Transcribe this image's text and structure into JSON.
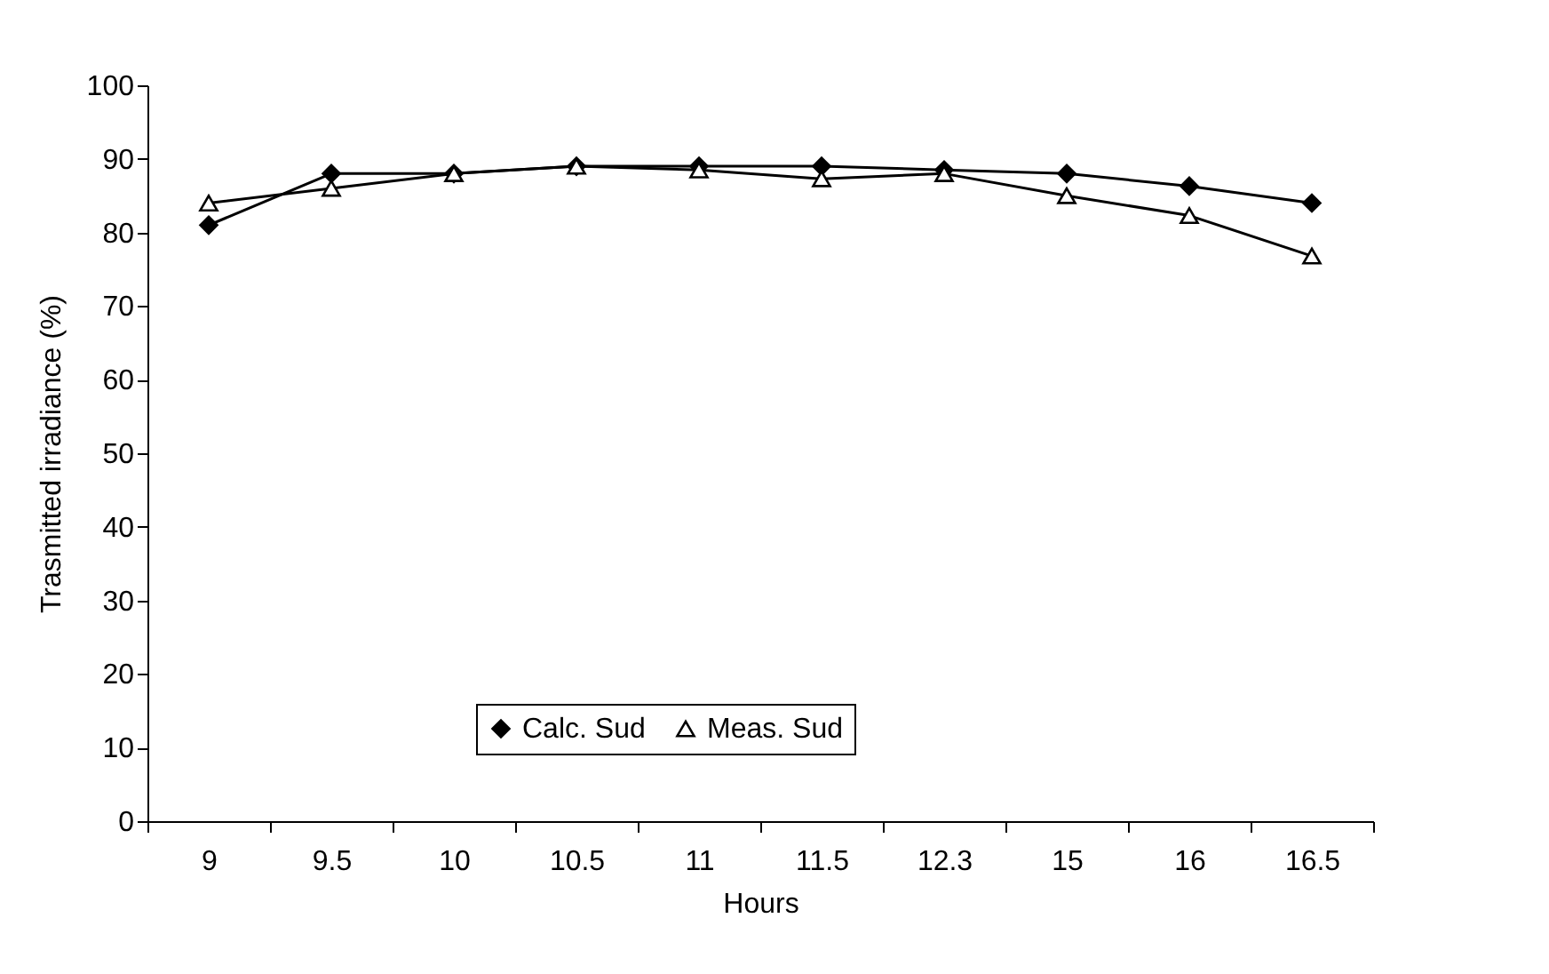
{
  "chart_data": {
    "type": "line",
    "xlabel": "Hours",
    "ylabel": "Trasmitted irradiance (%)",
    "categories": [
      "9",
      "9.5",
      "10",
      "10.5",
      "11",
      "11.5",
      "12.3",
      "15",
      "16",
      "16.5"
    ],
    "series": [
      {
        "name": "Calc. Sud",
        "color": "#000000",
        "marker": "diamond",
        "values": [
          81,
          88,
          88,
          89,
          89,
          89,
          88.5,
          88,
          86.3,
          84
        ]
      },
      {
        "name": "Meas. Sud",
        "color": "#000000",
        "marker": "triangle",
        "values": [
          84,
          86,
          88,
          89,
          88.5,
          87.3,
          88,
          85,
          82.3,
          76.8
        ]
      }
    ],
    "ylim": [
      0,
      100
    ],
    "yticks": [
      0,
      10,
      20,
      30,
      40,
      50,
      60,
      70,
      80,
      90,
      100
    ],
    "grid": false,
    "legend": "bottom",
    "line_style": "solid"
  }
}
